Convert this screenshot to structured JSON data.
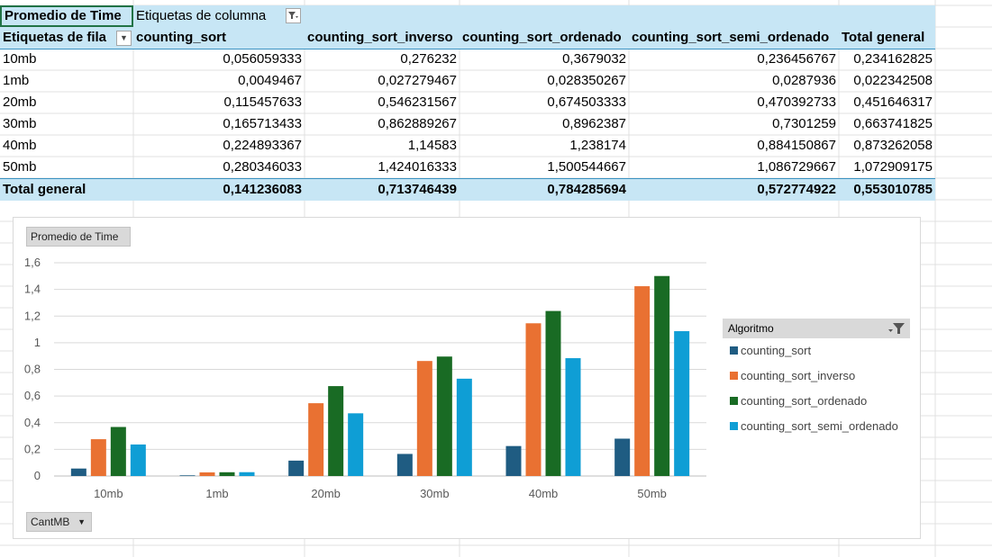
{
  "pivot": {
    "value_field": "Promedio de Time",
    "column_labels": "Etiquetas de columna",
    "row_labels": "Etiquetas de fila",
    "columns": [
      "counting_sort",
      "counting_sort_inverso",
      "counting_sort_ordenado",
      "counting_sort_semi_ordenado",
      "Total general"
    ],
    "rows": [
      {
        "label": "10mb",
        "values": [
          "0,056059333",
          "0,276232",
          "0,3679032",
          "0,236456767",
          "0,234162825"
        ]
      },
      {
        "label": "1mb",
        "values": [
          "0,0049467",
          "0,027279467",
          "0,028350267",
          "0,0287936",
          "0,022342508"
        ]
      },
      {
        "label": "20mb",
        "values": [
          "0,115457633",
          "0,546231567",
          "0,674503333",
          "0,470392733",
          "0,451646317"
        ]
      },
      {
        "label": "30mb",
        "values": [
          "0,165713433",
          "0,862889267",
          "0,8962387",
          "0,7301259",
          "0,663741825"
        ]
      },
      {
        "label": "40mb",
        "values": [
          "0,224893367",
          "1,14583",
          "1,238174",
          "0,884150867",
          "0,873262058"
        ]
      },
      {
        "label": "50mb",
        "values": [
          "0,280346033",
          "1,424016333",
          "1,500544667",
          "1,086729667",
          "1,072909175"
        ]
      }
    ],
    "total": {
      "label": "Total general",
      "values": [
        "0,141236083",
        "0,713746439",
        "0,784285694",
        "0,572774922",
        "0,553010785"
      ]
    }
  },
  "chart_data": {
    "type": "bar",
    "title": "",
    "value_field_button": "Promedio de Time",
    "axis_field_button": "CantMB",
    "legend_field_button": "Algoritmo",
    "legend_position": "right",
    "categories": [
      "10mb",
      "1mb",
      "20mb",
      "30mb",
      "40mb",
      "50mb"
    ],
    "series": [
      {
        "name": "counting_sort",
        "color": "#1f5c82",
        "values": [
          0.056059333,
          0.0049467,
          0.115457633,
          0.165713433,
          0.224893367,
          0.280346033
        ]
      },
      {
        "name": "counting_sort_inverso",
        "color": "#e97132",
        "values": [
          0.276232,
          0.027279467,
          0.546231567,
          0.862889267,
          1.14583,
          1.424016333
        ]
      },
      {
        "name": "counting_sort_ordenado",
        "color": "#196b24",
        "values": [
          0.3679032,
          0.028350267,
          0.674503333,
          0.8962387,
          1.238174,
          1.500544667
        ]
      },
      {
        "name": "counting_sort_semi_ordenado",
        "color": "#0f9ed5",
        "values": [
          0.236456767,
          0.0287936,
          0.470392733,
          0.7301259,
          0.884150867,
          1.086729667
        ]
      }
    ],
    "y_ticks": [
      "0",
      "0,2",
      "0,4",
      "0,6",
      "0,8",
      "1",
      "1,2",
      "1,4",
      "1,6"
    ],
    "ylim": [
      0,
      1.6
    ],
    "grid": true
  }
}
